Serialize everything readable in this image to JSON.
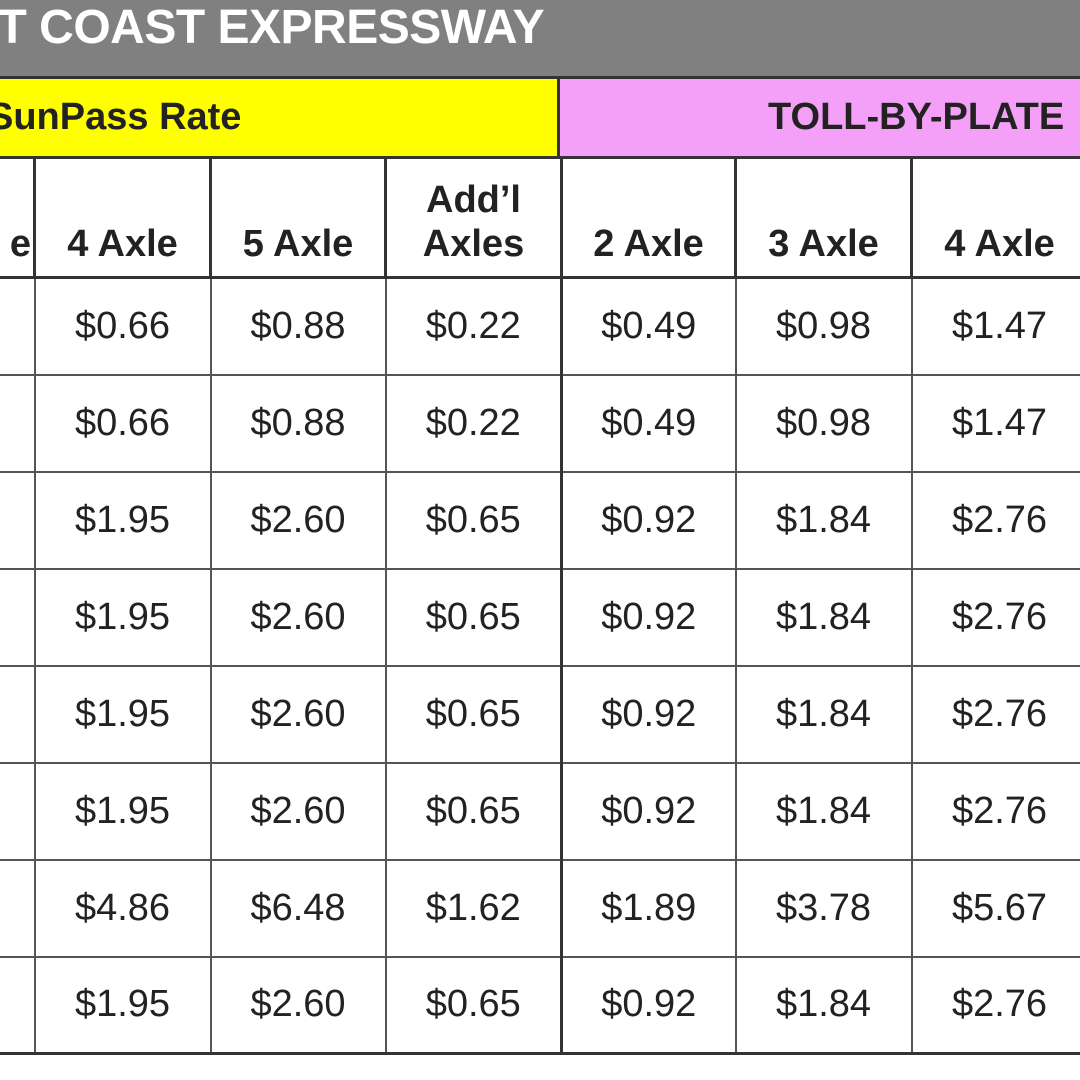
{
  "title": "ST COAST EXPRESSWAY",
  "groups": {
    "sunpass": "SunPass Rate",
    "toll_by_plate": "TOLL-BY-PLATE"
  },
  "columns": [
    "e",
    "4 Axle",
    "5 Axle",
    "Add’l Axles",
    "2 Axle",
    "3 Axle",
    "4 Axle"
  ],
  "colors": {
    "title_bar": "#808080",
    "sunpass": "#ffff00",
    "toll_by_plate": "#f4a0f8"
  },
  "rows": [
    [
      "",
      "$0.66",
      "$0.88",
      "$0.22",
      "$0.49",
      "$0.98",
      "$1.47"
    ],
    [
      "",
      "$0.66",
      "$0.88",
      "$0.22",
      "$0.49",
      "$0.98",
      "$1.47"
    ],
    [
      "",
      "$1.95",
      "$2.60",
      "$0.65",
      "$0.92",
      "$1.84",
      "$2.76"
    ],
    [
      "",
      "$1.95",
      "$2.60",
      "$0.65",
      "$0.92",
      "$1.84",
      "$2.76"
    ],
    [
      "",
      "$1.95",
      "$2.60",
      "$0.65",
      "$0.92",
      "$1.84",
      "$2.76"
    ],
    [
      "",
      "$1.95",
      "$2.60",
      "$0.65",
      "$0.92",
      "$1.84",
      "$2.76"
    ],
    [
      "",
      "$4.86",
      "$6.48",
      "$1.62",
      "$1.89",
      "$3.78",
      "$5.67"
    ],
    [
      "",
      "$1.95",
      "$2.60",
      "$0.65",
      "$0.92",
      "$1.84",
      "$2.76"
    ]
  ]
}
